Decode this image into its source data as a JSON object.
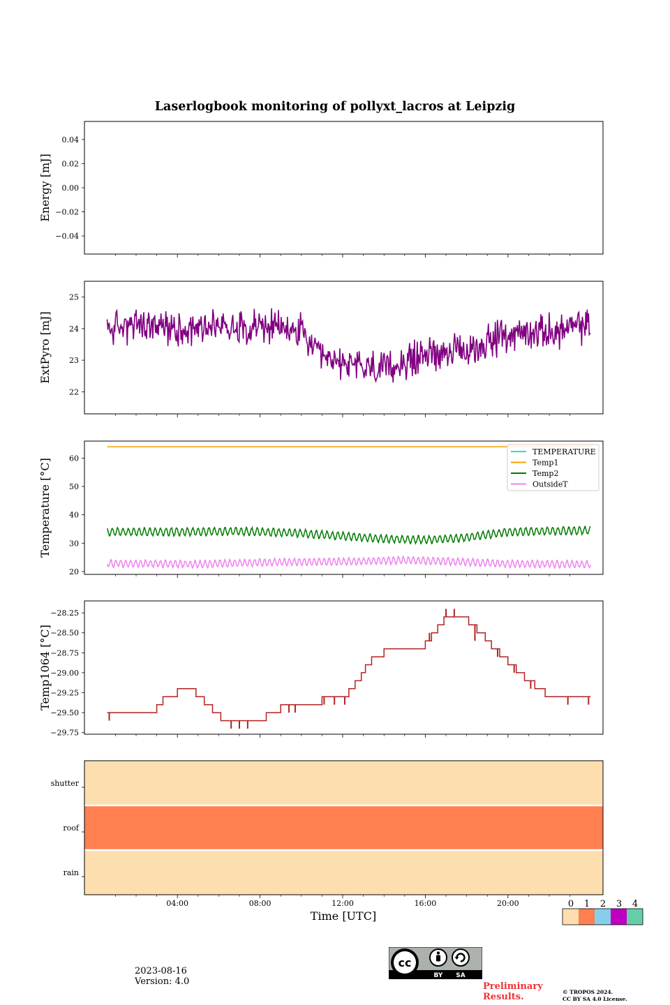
{
  "figure": {
    "title": "Laserlogbook monitoring of pollyxt_lacros at Leipzig",
    "footer": {
      "date": "2023-08-16",
      "version": "Version: 4.0"
    },
    "preliminary": [
      "Preliminary",
      "Results."
    ],
    "license_badge": {
      "by": "BY",
      "sa": "SA",
      "cc": "cc"
    },
    "copyright": [
      "© TROPOS 2024.",
      "CC BY SA 4.0 License."
    ]
  },
  "chart_data": [
    {
      "id": "energy",
      "type": "line",
      "ylabel": "Energy [mJ]",
      "ylim": [
        -0.055,
        0.055
      ],
      "yticks": [
        0.04,
        0.02,
        0.0,
        -0.02,
        -0.04
      ],
      "ytick_labels": [
        "0.04",
        "0.02",
        "0.00",
        "−0.02",
        "−0.04"
      ],
      "series": []
    },
    {
      "id": "extpyro",
      "type": "line",
      "ylabel": "ExtPyro [mJ]",
      "ylim": [
        21.3,
        25.5
      ],
      "yticks": [
        22,
        23,
        24,
        25
      ],
      "ytick_labels": [
        "22",
        "23",
        "24",
        "25"
      ],
      "x_range_hours": [
        0.6,
        24.0
      ],
      "series": [
        {
          "color": "#800080",
          "anchors": [
            [
              0.6,
              24.0
            ],
            [
              2.0,
              24.1
            ],
            [
              4.0,
              24.0
            ],
            [
              6.0,
              24.1
            ],
            [
              8.0,
              24.1
            ],
            [
              10.0,
              23.9
            ],
            [
              11.0,
              23.0
            ],
            [
              12.0,
              22.9
            ],
            [
              13.0,
              22.8
            ],
            [
              14.0,
              22.7
            ],
            [
              15.0,
              22.9
            ],
            [
              16.0,
              23.2
            ],
            [
              17.0,
              23.3
            ],
            [
              18.0,
              23.2
            ],
            [
              19.0,
              23.6
            ],
            [
              20.0,
              23.8
            ],
            [
              22.0,
              23.9
            ],
            [
              24.0,
              24.1
            ]
          ],
          "noise_amplitude": 0.55,
          "points": 700
        }
      ]
    },
    {
      "id": "temperature",
      "type": "line",
      "ylabel": "Temperature [°C]",
      "ylim": [
        19,
        66
      ],
      "yticks": [
        20,
        30,
        40,
        50,
        60
      ],
      "ytick_labels": [
        "20",
        "30",
        "40",
        "50",
        "60"
      ],
      "x_range_hours": [
        0.6,
        24.0
      ],
      "legend": {
        "placement": "top-right",
        "entries": [
          "TEMPERATURE",
          "Temp1",
          "Temp2",
          "OutsideT"
        ]
      },
      "series": [
        {
          "name": "TEMPERATURE",
          "color": "#22dddd",
          "anchors": []
        },
        {
          "name": "Temp1",
          "color": "#f5a300",
          "anchors": [
            [
              0.6,
              64.0
            ],
            [
              24.0,
              64.0
            ]
          ],
          "osc_amp": 0,
          "osc_period": 1
        },
        {
          "name": "Temp2",
          "color": "#007a00",
          "anchors": [
            [
              0.6,
              34.0
            ],
            [
              4.0,
              34.0
            ],
            [
              7.0,
              34.2
            ],
            [
              10.0,
              33.5
            ],
            [
              12.0,
              32.5
            ],
            [
              14.0,
              31.5
            ],
            [
              16.0,
              31.2
            ],
            [
              18.0,
              32.0
            ],
            [
              20.0,
              34.0
            ],
            [
              24.0,
              34.5
            ]
          ],
          "osc_amp": 1.3,
          "osc_period": 0.26
        },
        {
          "name": "OutsideT",
          "color": "#ee82ee",
          "anchors": [
            [
              0.6,
              22.8
            ],
            [
              3.0,
              22.8
            ],
            [
              5.0,
              22.6
            ],
            [
              8.0,
              23.2
            ],
            [
              12.0,
              23.5
            ],
            [
              15.0,
              24.0
            ],
            [
              17.0,
              23.6
            ],
            [
              20.0,
              22.8
            ],
            [
              24.0,
              22.5
            ]
          ],
          "osc_amp": 1.2,
          "osc_period": 0.24
        }
      ]
    },
    {
      "id": "temp1064",
      "type": "line",
      "ylabel": "Temp1064 [°C]",
      "ylim": [
        -29.77,
        -28.1
      ],
      "yticks": [
        -28.25,
        -28.5,
        -28.75,
        -29.0,
        -29.25,
        -29.5,
        -29.75
      ],
      "ytick_labels": [
        "−28.25",
        "−28.50",
        "−28.75",
        "−29.00",
        "−29.25",
        "−29.50",
        "−29.75"
      ],
      "x_range_hours": [
        0.6,
        24.0
      ],
      "series": [
        {
          "color": "#b22222",
          "steps": [
            [
              0.6,
              -29.5
            ],
            [
              3.0,
              -29.4
            ],
            [
              3.3,
              -29.3
            ],
            [
              4.0,
              -29.2
            ],
            [
              4.9,
              -29.3
            ],
            [
              5.3,
              -29.4
            ],
            [
              5.7,
              -29.5
            ],
            [
              6.1,
              -29.6
            ],
            [
              8.3,
              -29.5
            ],
            [
              9.0,
              -29.4
            ],
            [
              11.0,
              -29.3
            ],
            [
              12.3,
              -29.2
            ],
            [
              12.6,
              -29.1
            ],
            [
              12.9,
              -29.0
            ],
            [
              13.1,
              -28.9
            ],
            [
              13.4,
              -28.8
            ],
            [
              14.0,
              -28.7
            ],
            [
              16.0,
              -28.6
            ],
            [
              16.3,
              -28.5
            ],
            [
              16.6,
              -28.4
            ],
            [
              16.9,
              -28.3
            ],
            [
              18.1,
              -28.4
            ],
            [
              18.5,
              -28.5
            ],
            [
              18.9,
              -28.6
            ],
            [
              19.2,
              -28.7
            ],
            [
              19.6,
              -28.8
            ],
            [
              20.0,
              -28.9
            ],
            [
              20.4,
              -29.0
            ],
            [
              20.8,
              -29.1
            ],
            [
              21.3,
              -29.2
            ],
            [
              21.8,
              -29.3
            ],
            [
              24.0,
              -29.3
            ]
          ],
          "spikes": [
            [
              0.7,
              -29.6
            ],
            [
              6.6,
              -29.7
            ],
            [
              7.0,
              -29.7
            ],
            [
              7.4,
              -29.7
            ],
            [
              9.4,
              -29.5
            ],
            [
              9.7,
              -29.5
            ],
            [
              11.1,
              -29.4
            ],
            [
              11.6,
              -29.4
            ],
            [
              12.1,
              -29.4
            ],
            [
              13.7,
              -28.8
            ],
            [
              16.2,
              -28.5
            ],
            [
              17.0,
              -28.2
            ],
            [
              17.4,
              -28.2
            ],
            [
              18.4,
              -28.6
            ],
            [
              19.5,
              -28.8
            ],
            [
              20.3,
              -29.0
            ],
            [
              21.1,
              -29.2
            ],
            [
              22.9,
              -29.4
            ],
            [
              23.9,
              -29.4
            ]
          ]
        }
      ]
    },
    {
      "id": "status",
      "type": "heatmap",
      "rows": [
        "shutter",
        "roof",
        "rain"
      ],
      "values": [
        0,
        1,
        0
      ],
      "colormap": [
        "#fddeaf",
        "#ff7f50",
        "#87ceeb",
        "#c000c0",
        "#66cdaa"
      ]
    }
  ],
  "x_axis": {
    "label": "Time [UTC]",
    "range_hours": [
      -0.5,
      24.6
    ],
    "major_ticks": [
      4,
      8,
      12,
      16,
      20
    ],
    "major_labels": [
      "04:00",
      "08:00",
      "12:00",
      "16:00",
      "20:00"
    ]
  },
  "colorbar": {
    "tick_labels": [
      "0",
      "1",
      "2",
      "3",
      "4"
    ],
    "colors": [
      "#fddeaf",
      "#ff7f50",
      "#87ceeb",
      "#c000c0",
      "#66cdaa"
    ]
  }
}
